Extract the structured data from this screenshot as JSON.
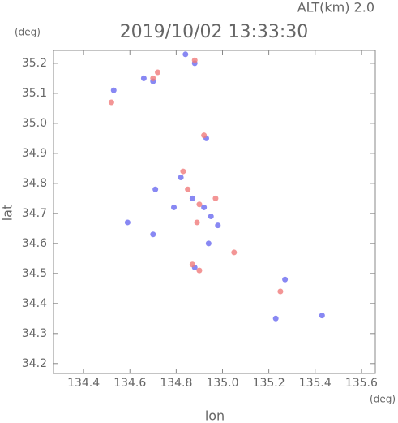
{
  "chart_data": {
    "type": "scatter",
    "title": "2019/10/02 13:33:30",
    "subtitle": "ALT(km) 2.0",
    "x_label": "lon",
    "y_label": "lat",
    "x_unit": "(deg)",
    "y_unit": "(deg)",
    "xlim": [
      134.27,
      135.66
    ],
    "ylim": [
      34.167,
      35.243
    ],
    "xticks": [
      134.4,
      134.6,
      134.8,
      {
        "value": 135,
        "label": "135.0"
      },
      135.2,
      135.4,
      135.6
    ],
    "yticks": [
      34.2,
      34.3,
      34.4,
      34.5,
      34.6,
      34.7,
      34.8,
      34.9,
      {
        "value": 35,
        "label": "35.0"
      },
      35.1,
      35.2
    ],
    "series": [
      {
        "color": "#6a6af0",
        "x": [
          134.84,
          134.88,
          134.66,
          134.53,
          134.7,
          134.93,
          134.71,
          134.82,
          134.79,
          134.87,
          134.92,
          134.98,
          134.94,
          134.7,
          134.59,
          134.88,
          135.27,
          135.23,
          135.43,
          134.95
        ],
        "y": [
          35.23,
          35.2,
          35.15,
          35.11,
          35.14,
          34.95,
          34.78,
          34.82,
          34.72,
          34.75,
          34.72,
          34.66,
          34.6,
          34.63,
          34.67,
          34.52,
          34.48,
          34.35,
          34.36,
          34.69
        ]
      },
      {
        "color": "#f07a7a",
        "x": [
          134.88,
          134.72,
          134.7,
          134.52,
          134.92,
          134.83,
          134.85,
          134.9,
          134.89,
          134.87,
          134.9,
          135.25,
          135.05,
          134.97
        ],
        "y": [
          35.21,
          35.17,
          35.15,
          35.07,
          34.96,
          34.84,
          34.78,
          34.73,
          34.67,
          34.53,
          34.51,
          34.44,
          34.57,
          34.75
        ]
      }
    ]
  }
}
